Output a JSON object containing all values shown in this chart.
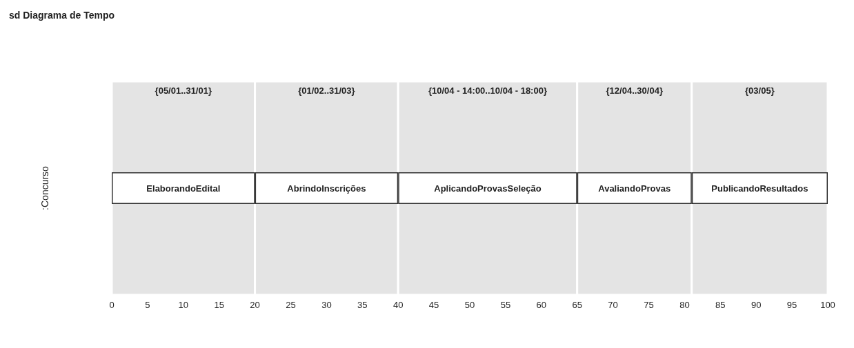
{
  "chart_data": {
    "type": "bar",
    "title": "sd Diagrama de Tempo",
    "orientation": "horizontal",
    "stacked": true,
    "categories": [
      ":Concurso"
    ],
    "series": [
      {
        "name": "ElaborandoEdital",
        "color": "#ffffff",
        "values": [
          20
        ]
      },
      {
        "name": "AbrindoInscrições",
        "color": "#ffffff",
        "values": [
          20
        ]
      },
      {
        "name": "AplicandoProvasSeleção",
        "color": "#ffffff",
        "values": [
          25
        ]
      },
      {
        "name": "AvaliandoProvas",
        "color": "#ffffff",
        "values": [
          16
        ]
      },
      {
        "name": "PublicandoResultados",
        "color": "#ffffff",
        "values": [
          19
        ]
      }
    ],
    "bands": [
      {
        "axis": "x",
        "from": 0,
        "to": 20,
        "label": "{05/01..31/01}",
        "color": "#e4e4e4"
      },
      {
        "axis": "x",
        "from": 20,
        "to": 40,
        "label": "{01/02..31/03}",
        "color": "#e4e4e4"
      },
      {
        "axis": "x",
        "from": 40,
        "to": 65,
        "label": "{10/04 - 14:00..10/04 - 18:00}",
        "color": "#e4e4e4"
      },
      {
        "axis": "x",
        "from": 65,
        "to": 81,
        "label": "{12/04..30/04}",
        "color": "#e4e4e4"
      },
      {
        "axis": "x",
        "from": 81,
        "to": 100,
        "label": "{03/05}",
        "color": "#e4e4e4"
      }
    ],
    "xlim": [
      0,
      100
    ],
    "xticks": [
      0,
      5,
      10,
      15,
      20,
      25,
      30,
      35,
      40,
      45,
      50,
      55,
      60,
      65,
      70,
      75,
      80,
      85,
      90,
      95,
      100
    ],
    "legend": false
  }
}
